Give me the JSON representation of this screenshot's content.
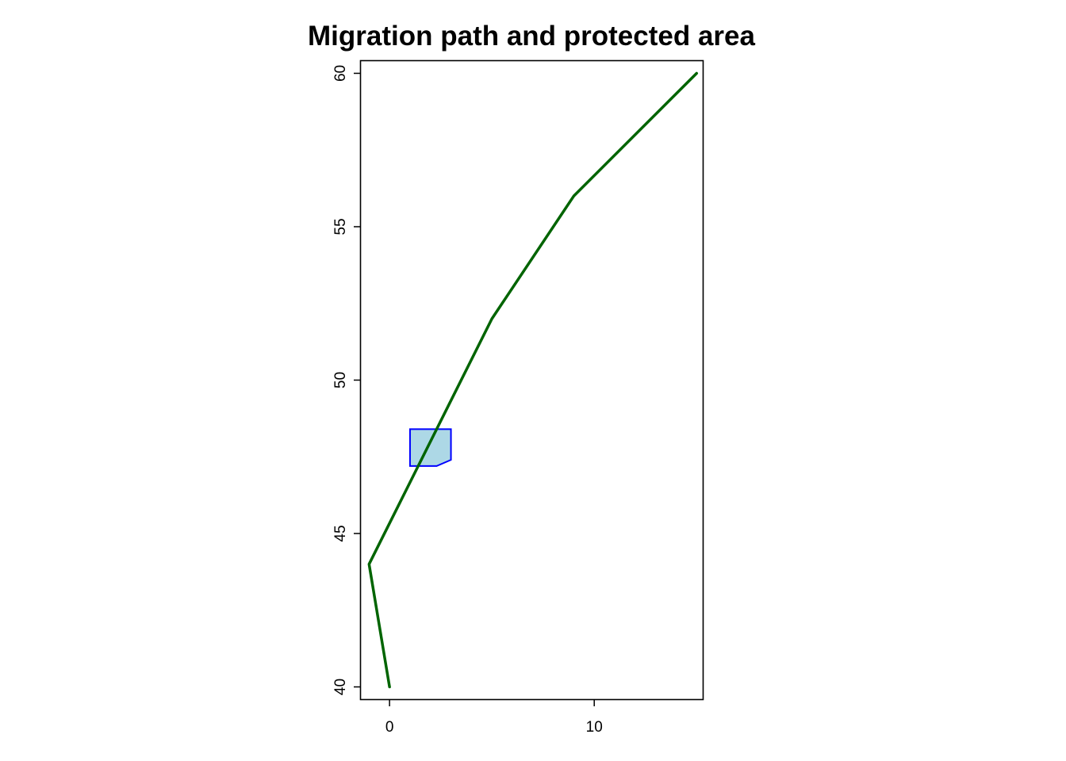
{
  "chart_data": {
    "type": "line",
    "title": "Migration path and protected area",
    "xlabel": "",
    "ylabel": "",
    "xlim": [
      -1.4,
      15.3
    ],
    "ylim": [
      39.6,
      60.4
    ],
    "x_ticks": [
      0,
      10
    ],
    "x_tick_labels": [
      "0",
      "10"
    ],
    "y_ticks": [
      40,
      45,
      50,
      55,
      60
    ],
    "y_tick_labels": [
      "40",
      "45",
      "50",
      "55",
      "60"
    ],
    "grid": false,
    "legend": "none",
    "series": [
      {
        "kind": "line",
        "color": "#006400",
        "points": [
          {
            "x": 0,
            "y": 40
          },
          {
            "x": -1,
            "y": 44
          },
          {
            "x": 5,
            "y": 52
          },
          {
            "x": 9,
            "y": 56
          },
          {
            "x": 15,
            "y": 60
          }
        ]
      },
      {
        "kind": "polygon",
        "fill": "#add8e6",
        "stroke": "#0000ff",
        "points": [
          {
            "x": 1,
            "y": 47.2
          },
          {
            "x": 1,
            "y": 48.4
          },
          {
            "x": 3,
            "y": 48.4
          },
          {
            "x": 3,
            "y": 47.4
          },
          {
            "x": 2.3,
            "y": 47.2
          }
        ]
      }
    ]
  }
}
